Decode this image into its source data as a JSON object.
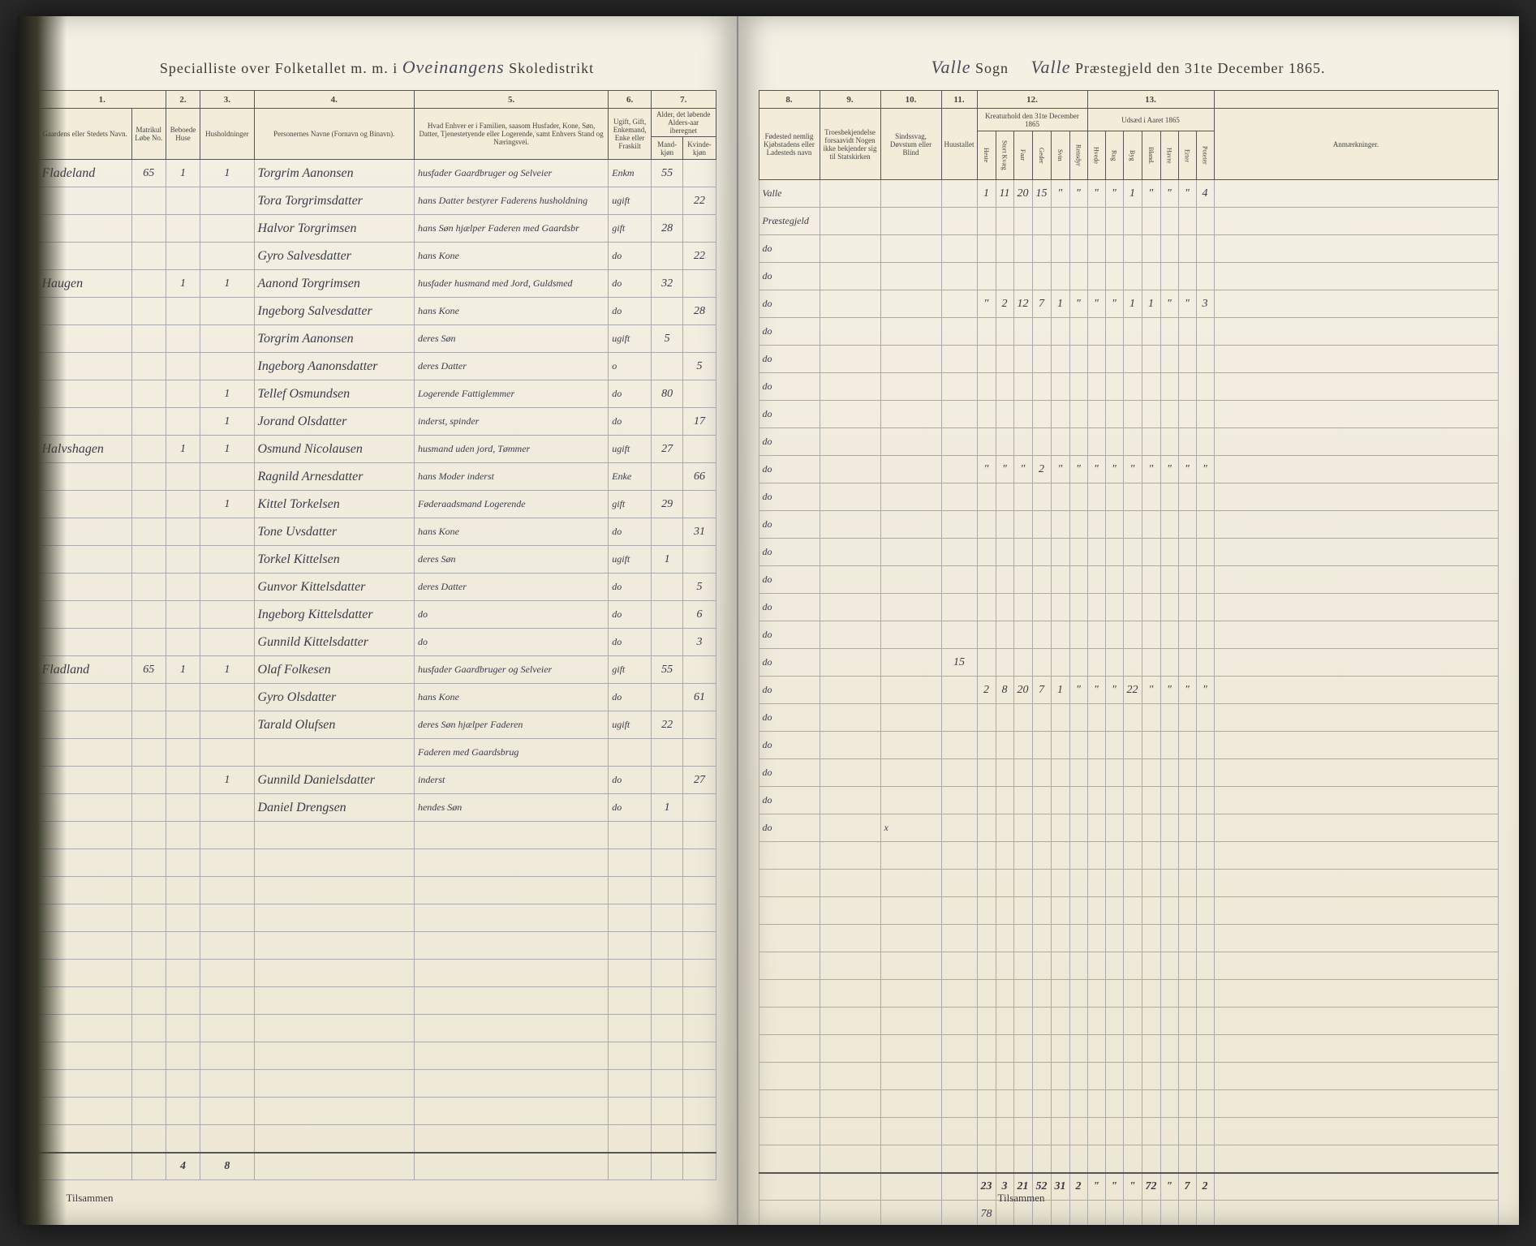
{
  "header_left": {
    "prefix": "Specialliste over Folketallet m. m. i",
    "district": "Oveinangens",
    "suffix": "Skoledistrikt"
  },
  "header_right": {
    "sogn": "Valle",
    "sogn_label": "Sogn",
    "parish": "Valle",
    "suffix": "Præstegjeld den 31te December 1865."
  },
  "col_nums_left": [
    "1.",
    "2.",
    "3.",
    "4.",
    "5.",
    "6.",
    "7."
  ],
  "col_heads_left": {
    "c1": "Gaardens eller Stedets Navn.",
    "c2": "Matrikul Løbe No.",
    "c3a": "Beboede Huse",
    "c3b": "Husholdninger",
    "c4": "Personernes Navne (Fornavn og Binavn).",
    "c5": "Hvad Enhver er i Familien, saasom Husfader, Kone, Søn, Datter, Tjenestetyende eller Logerende, samt Enhvers Stand og Næringsvei.",
    "c6": "Ugift, Gift, Enkemand, Enke eller Fraskilt",
    "c7": "Alder, det løbende Alders-aar iberegnet",
    "c7a": "Mand-kjøn",
    "c7b": "Kvinde-kjøn"
  },
  "col_nums_right": [
    "8.",
    "9.",
    "10.",
    "11.",
    "12.",
    "13."
  ],
  "col_heads_right": {
    "c8": "Fødested nemlig Kjøbstadens eller Ladesteds navn",
    "c9": "Troesbekjendelse forsaavidt Nogen ikke bekjender sig til Statskirken",
    "c10": "Sindssvag, Døvstum eller Blind",
    "c11": "Huustallet",
    "c12": "Kreaturhold den 31te December 1865",
    "c12_sub": [
      "Heste",
      "Stort Kvæg",
      "Faar",
      "Geder",
      "Svin",
      "Rensdyr"
    ],
    "c13": "Udsæd i Aaret 1865",
    "c13_sub": [
      "Hvede",
      "Rug",
      "Byg",
      "Bland.",
      "Havre",
      "Erter",
      "Poteter"
    ],
    "c14": "Anmærkninger."
  },
  "rows": [
    {
      "gard": "Fladeland",
      "lnr": "65",
      "hus": "1",
      "hh": "1",
      "navn": "Torgrim Aanonsen",
      "rolle": "husfader Gaardbruger og Selveier",
      "stat": "Enkm",
      "m": "55",
      "k": "",
      "fod": "Valle",
      "notat": "",
      "kreatur": [
        "1",
        "11",
        "20",
        "15",
        "\"",
        "\"",
        "\"",
        "\"",
        "1",
        "\"",
        "\"",
        "\"",
        "4"
      ]
    },
    {
      "gard": "",
      "lnr": "",
      "hus": "",
      "hh": "",
      "navn": "Tora Torgrimsdatter",
      "rolle": "hans Datter bestyrer Faderens husholdning",
      "stat": "ugift",
      "m": "",
      "k": "22",
      "fod": "Præstegjeld",
      "notat": ""
    },
    {
      "gard": "",
      "lnr": "",
      "hus": "",
      "hh": "",
      "navn": "Halvor Torgrimsen",
      "rolle": "hans Søn hjælper Faderen med Gaardsbr",
      "stat": "gift",
      "m": "28",
      "k": "",
      "fod": "do",
      "notat": ""
    },
    {
      "gard": "",
      "lnr": "",
      "hus": "",
      "hh": "",
      "navn": "Gyro Salvesdatter",
      "rolle": "hans Kone",
      "stat": "do",
      "m": "",
      "k": "22",
      "fod": "do",
      "notat": ""
    },
    {
      "gard": "Haugen",
      "lnr": "",
      "hus": "1",
      "hh": "1",
      "navn": "Aanond Torgrimsen",
      "rolle": "husfader husmand med Jord, Guldsmed",
      "stat": "do",
      "m": "32",
      "k": "",
      "fod": "do",
      "notat": "",
      "kreatur": [
        "\"",
        "2",
        "12",
        "7",
        "1",
        "\"",
        "\"",
        "\"",
        "1",
        "1",
        "\"",
        "\"",
        "3"
      ]
    },
    {
      "gard": "",
      "lnr": "",
      "hus": "",
      "hh": "",
      "navn": "Ingeborg Salvesdatter",
      "rolle": "hans Kone",
      "stat": "do",
      "m": "",
      "k": "28",
      "fod": "do",
      "notat": ""
    },
    {
      "gard": "",
      "lnr": "",
      "hus": "",
      "hh": "",
      "navn": "Torgrim Aanonsen",
      "rolle": "deres Søn",
      "stat": "ugift",
      "m": "5",
      "k": "",
      "fod": "do",
      "notat": ""
    },
    {
      "gard": "",
      "lnr": "",
      "hus": "",
      "hh": "",
      "navn": "Ingeborg Aanonsdatter",
      "rolle": "deres Datter",
      "stat": "o",
      "m": "",
      "k": "5",
      "fod": "do",
      "notat": ""
    },
    {
      "gard": "",
      "lnr": "",
      "hus": "",
      "hh": "1",
      "navn": "Tellef Osmundsen",
      "rolle": "Logerende Fattiglemmer",
      "stat": "do",
      "m": "80",
      "k": "",
      "fod": "do",
      "notat": ""
    },
    {
      "gard": "",
      "lnr": "",
      "hus": "",
      "hh": "1",
      "navn": "Jorand Olsdatter",
      "rolle": "inderst, spinder",
      "stat": "do",
      "m": "",
      "k": "17",
      "fod": "do",
      "notat": ""
    },
    {
      "gard": "Halvshagen",
      "lnr": "",
      "hus": "1",
      "hh": "1",
      "navn": "Osmund Nicolausen",
      "rolle": "husmand uden jord, Tømmer",
      "stat": "ugift",
      "m": "27",
      "k": "",
      "fod": "do",
      "notat": "",
      "kreatur": [
        "\"",
        "\"",
        "\"",
        "2",
        "\"",
        "\"",
        "\"",
        "\"",
        "\"",
        "\"",
        "\"",
        "\"",
        "\""
      ]
    },
    {
      "gard": "",
      "lnr": "",
      "hus": "",
      "hh": "",
      "navn": "Ragnild Arnesdatter",
      "rolle": "hans Moder inderst",
      "stat": "Enke",
      "m": "",
      "k": "66",
      "fod": "do",
      "notat": ""
    },
    {
      "gard": "",
      "lnr": "",
      "hus": "",
      "hh": "1",
      "navn": "Kittel Torkelsen",
      "rolle": "Føderaadsmand Logerende",
      "stat": "gift",
      "m": "29",
      "k": "",
      "fod": "do",
      "notat": ""
    },
    {
      "gard": "",
      "lnr": "",
      "hus": "",
      "hh": "",
      "navn": "Tone Uvsdatter",
      "rolle": "hans Kone",
      "stat": "do",
      "m": "",
      "k": "31",
      "fod": "do",
      "notat": ""
    },
    {
      "gard": "",
      "lnr": "",
      "hus": "",
      "hh": "",
      "navn": "Torkel Kittelsen",
      "rolle": "deres Søn",
      "stat": "ugift",
      "m": "1",
      "k": "",
      "fod": "do",
      "notat": ""
    },
    {
      "gard": "",
      "lnr": "",
      "hus": "",
      "hh": "",
      "navn": "Gunvor Kittelsdatter",
      "rolle": "deres Datter",
      "stat": "do",
      "m": "",
      "k": "5",
      "fod": "do",
      "notat": ""
    },
    {
      "gard": "",
      "lnr": "",
      "hus": "",
      "hh": "",
      "navn": "Ingeborg Kittelsdatter",
      "rolle": "do",
      "stat": "do",
      "m": "",
      "k": "6",
      "fod": "do",
      "notat": ""
    },
    {
      "gard": "",
      "lnr": "",
      "hus": "",
      "hh": "",
      "navn": "Gunnild Kittelsdatter",
      "rolle": "do",
      "stat": "do",
      "m": "",
      "k": "3",
      "fod": "do",
      "notat": "",
      "sum11": "15"
    },
    {
      "gard": "Fladland",
      "lnr": "65",
      "hus": "1",
      "hh": "1",
      "navn": "Olaf Folkesen",
      "rolle": "husfader Gaardbruger og Selveier",
      "stat": "gift",
      "m": "55",
      "k": "",
      "fod": "do",
      "notat": "",
      "kreatur": [
        "2",
        "8",
        "20",
        "7",
        "1",
        "\"",
        "\"",
        "\"",
        "22",
        "\"",
        "\"",
        "\"",
        "\""
      ]
    },
    {
      "gard": "",
      "lnr": "",
      "hus": "",
      "hh": "",
      "navn": "Gyro Olsdatter",
      "rolle": "hans Kone",
      "stat": "do",
      "m": "",
      "k": "61",
      "fod": "do",
      "notat": ""
    },
    {
      "gard": "",
      "lnr": "",
      "hus": "",
      "hh": "",
      "navn": "Tarald Olufsen",
      "rolle": "deres Søn hjælper Faderen",
      "stat": "ugift",
      "m": "22",
      "k": "",
      "fod": "do",
      "notat": ""
    },
    {
      "gard": "",
      "lnr": "",
      "hus": "",
      "hh": "",
      "navn": "",
      "rolle": "Faderen med Gaardsbrug",
      "stat": "",
      "m": "",
      "k": "",
      "fod": "do",
      "notat": ""
    },
    {
      "gard": "",
      "lnr": "",
      "hus": "",
      "hh": "1",
      "navn": "Gunnild Danielsdatter",
      "rolle": "inderst",
      "stat": "do",
      "m": "",
      "k": "27",
      "fod": "do",
      "notat": ""
    },
    {
      "gard": "",
      "lnr": "",
      "hus": "",
      "hh": "",
      "navn": "Daniel Drengsen",
      "rolle": "hendes Søn",
      "stat": "do",
      "m": "1",
      "k": "",
      "fod": "do",
      "notat": "x"
    }
  ],
  "empty_rows": 12,
  "totals_left": {
    "hus": "4",
    "hh": "8"
  },
  "totals_right": {
    "line1": [
      "23",
      "3",
      "21",
      "52",
      "31",
      "2",
      "\"",
      "\"",
      "\"",
      "72",
      "\"",
      "7",
      "2"
    ],
    "line2": "78"
  },
  "tilsammen": "Tilsammen"
}
